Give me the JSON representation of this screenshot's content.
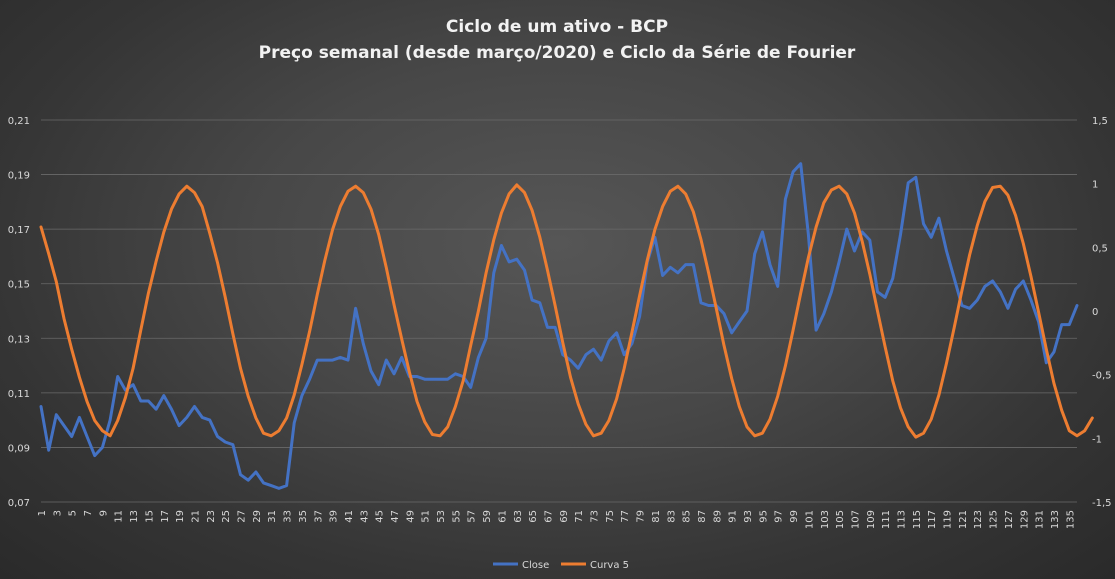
{
  "chart_data": {
    "type": "line",
    "title": "Ciclo de um ativo - BCP",
    "subtitle": "Preço semanal (desde março/2020) e Ciclo da Série de Fourier",
    "x_tick_labels": [
      "1",
      "3",
      "5",
      "7",
      "9",
      "11",
      "13",
      "15",
      "17",
      "19",
      "21",
      "23",
      "25",
      "27",
      "29",
      "31",
      "33",
      "35",
      "37",
      "39",
      "41",
      "43",
      "45",
      "47",
      "49",
      "51",
      "53",
      "55",
      "57",
      "59",
      "61",
      "63",
      "65",
      "67",
      "69",
      "71",
      "73",
      "75",
      "77",
      "79",
      "81",
      "83",
      "85",
      "87",
      "89",
      "91",
      "93",
      "95",
      "97",
      "99",
      "101",
      "103",
      "105",
      "107",
      "109",
      "111",
      "113",
      "115",
      "117",
      "119",
      "121",
      "123",
      "125",
      "127",
      "129",
      "131",
      "133",
      "135"
    ],
    "x_range": [
      1,
      136
    ],
    "left_axis": {
      "ylim": [
        0.07,
        0.21
      ],
      "ticks": [
        "0,07",
        "0,09",
        "0,11",
        "0,13",
        "0,15",
        "0,17",
        "0,19",
        "0,21"
      ],
      "tick_values": [
        0.07,
        0.09,
        0.11,
        0.13,
        0.15,
        0.17,
        0.19,
        0.21
      ]
    },
    "right_axis": {
      "ylim": [
        -1.5,
        1.5
      ],
      "ticks": [
        "-1,5",
        "-1",
        "-0,5",
        "0",
        "0,5",
        "1",
        "1,5"
      ],
      "tick_values": [
        -1.5,
        -1,
        -0.5,
        0,
        0.5,
        1,
        1.5
      ]
    },
    "grid": true,
    "legend_position": "bottom",
    "series": [
      {
        "name": "Close",
        "axis": "left",
        "color": "#4472c4",
        "values": [
          0.105,
          0.089,
          0.102,
          0.098,
          0.094,
          0.101,
          0.094,
          0.087,
          0.09,
          0.1,
          0.116,
          0.111,
          0.113,
          0.107,
          0.107,
          0.104,
          0.109,
          0.104,
          0.098,
          0.101,
          0.105,
          0.101,
          0.1,
          0.094,
          0.092,
          0.091,
          0.08,
          0.078,
          0.081,
          0.077,
          0.076,
          0.075,
          0.076,
          0.099,
          0.109,
          0.115,
          0.122,
          0.122,
          0.122,
          0.123,
          0.122,
          0.141,
          0.128,
          0.118,
          0.113,
          0.122,
          0.117,
          0.123,
          0.116,
          0.116,
          0.115,
          0.115,
          0.115,
          0.115,
          0.117,
          0.116,
          0.112,
          0.123,
          0.13,
          0.154,
          0.164,
          0.158,
          0.159,
          0.155,
          0.144,
          0.143,
          0.134,
          0.134,
          0.124,
          0.122,
          0.119,
          0.124,
          0.126,
          0.122,
          0.129,
          0.132,
          0.124,
          0.128,
          0.138,
          0.158,
          0.167,
          0.153,
          0.156,
          0.154,
          0.157,
          0.157,
          0.143,
          0.142,
          0.142,
          0.139,
          0.132,
          0.136,
          0.14,
          0.161,
          0.169,
          0.157,
          0.149,
          0.181,
          0.191,
          0.194,
          0.168,
          0.133,
          0.139,
          0.147,
          0.158,
          0.17,
          0.162,
          0.169,
          0.166,
          0.147,
          0.145,
          0.152,
          0.168,
          0.187,
          0.189,
          0.172,
          0.167,
          0.174,
          0.162,
          0.152,
          0.142,
          0.141,
          0.144,
          0.149,
          0.151,
          0.147,
          0.141,
          0.148,
          0.151,
          0.144,
          0.136,
          0.121,
          0.125,
          0.135,
          0.135,
          0.142
        ]
      },
      {
        "name": "Curva 5",
        "axis": "right",
        "color": "#ed7d31",
        "values": [
          0.66,
          0.45,
          0.23,
          -0.06,
          -0.3,
          -0.52,
          -0.71,
          -0.86,
          -0.94,
          -0.98,
          -0.86,
          -0.68,
          -0.45,
          -0.15,
          0.14,
          0.39,
          0.62,
          0.8,
          0.92,
          0.98,
          0.93,
          0.82,
          0.61,
          0.38,
          0.11,
          -0.18,
          -0.45,
          -0.67,
          -0.84,
          -0.96,
          -0.98,
          -0.94,
          -0.84,
          -0.66,
          -0.42,
          -0.16,
          0.13,
          0.4,
          0.64,
          0.82,
          0.94,
          0.98,
          0.93,
          0.8,
          0.6,
          0.34,
          0.05,
          -0.22,
          -0.48,
          -0.71,
          -0.87,
          -0.97,
          -0.98,
          -0.91,
          -0.75,
          -0.55,
          -0.27,
          0.0,
          0.3,
          0.56,
          0.77,
          0.92,
          0.99,
          0.93,
          0.79,
          0.58,
          0.32,
          0.04,
          -0.25,
          -0.52,
          -0.73,
          -0.89,
          -0.98,
          -0.96,
          -0.86,
          -0.69,
          -0.45,
          -0.17,
          0.12,
          0.4,
          0.64,
          0.82,
          0.94,
          0.98,
          0.92,
          0.78,
          0.56,
          0.3,
          0.02,
          -0.27,
          -0.53,
          -0.75,
          -0.91,
          -0.98,
          -0.96,
          -0.85,
          -0.67,
          -0.43,
          -0.15,
          0.14,
          0.42,
          0.66,
          0.85,
          0.95,
          0.98,
          0.92,
          0.77,
          0.55,
          0.29,
          0.0,
          -0.28,
          -0.55,
          -0.76,
          -0.91,
          -0.99,
          -0.96,
          -0.85,
          -0.66,
          -0.41,
          -0.13,
          0.16,
          0.44,
          0.67,
          0.86,
          0.97,
          0.98,
          0.91,
          0.75,
          0.53,
          0.27,
          -0.01,
          -0.3,
          -0.57,
          -0.78,
          -0.94,
          -0.98,
          -0.94,
          -0.84
        ]
      }
    ]
  }
}
